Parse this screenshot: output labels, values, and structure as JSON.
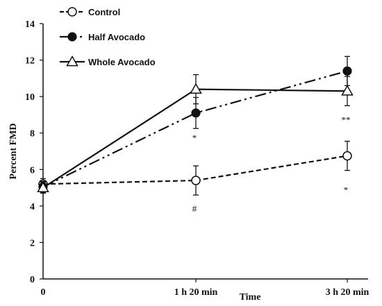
{
  "chart_data": {
    "type": "line",
    "xlabel": "Time",
    "ylabel": "Percent FMD",
    "categories": [
      "0",
      "1 h 20 min",
      "3 h 20 min"
    ],
    "ylim": [
      0,
      14
    ],
    "yticks": [
      "0",
      "2",
      "4",
      "6",
      "8",
      "10",
      "12",
      "14"
    ],
    "legend_position": "top-left",
    "series": [
      {
        "name": "Control",
        "values": [
          5.2,
          5.4,
          6.75
        ],
        "errors": [
          0.3,
          0.8,
          0.8
        ],
        "marker": "open-circle",
        "line": "dashed",
        "annotations": [
          "",
          "#",
          "*"
        ]
      },
      {
        "name": "Half Avocado",
        "values": [
          5.05,
          9.1,
          11.4
        ],
        "errors": [
          0.3,
          0.85,
          0.8
        ],
        "marker": "filled-circle",
        "line": "dash-dot-dot",
        "annotations": [
          "",
          "*",
          "**"
        ]
      },
      {
        "name": "Whole Avocado",
        "values": [
          5.0,
          10.4,
          10.3
        ],
        "errors": [
          0.3,
          0.8,
          0.8
        ],
        "marker": "open-triangle",
        "line": "solid",
        "annotations": [
          "",
          "",
          ""
        ]
      }
    ]
  }
}
